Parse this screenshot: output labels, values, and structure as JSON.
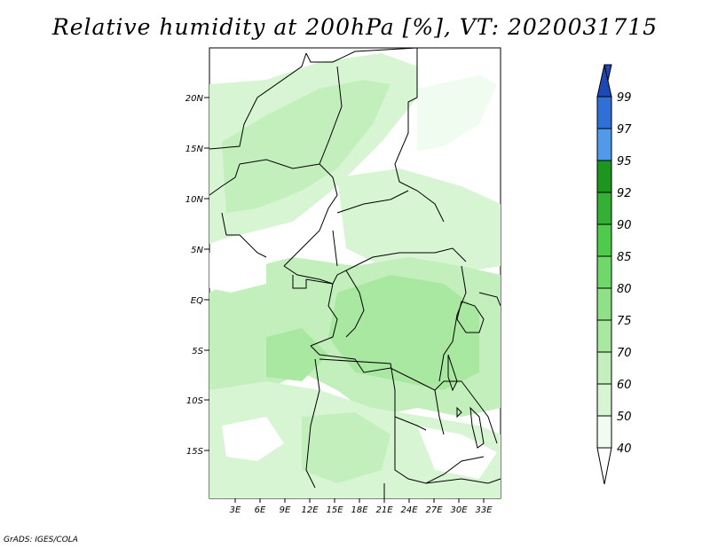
{
  "title": "Relative humidity at 200hPa [%], VT: 2020031715",
  "credit": "GrADS: IGES/COLA",
  "map": {
    "lat_labels": [
      "20N",
      "15N",
      "10N",
      "5N",
      "EQ",
      "5S",
      "10S",
      "15S"
    ],
    "lon_labels": [
      "3E",
      "6E",
      "9E",
      "12E",
      "15E",
      "18E",
      "21E",
      "24E",
      "27E",
      "30E",
      "33E"
    ]
  },
  "colorbar": {
    "levels": [
      "40",
      "50",
      "60",
      "70",
      "75",
      "80",
      "85",
      "90",
      "92",
      "95",
      "97",
      "99"
    ],
    "colors": {
      "40_50": "#f0fcf0",
      "50_60": "#d7f5d2",
      "60_70": "#c2efbc",
      "70_75": "#a9e8a0",
      "75_80": "#8ee285",
      "80_85": "#6fd86a",
      "85_90": "#4fcb4c",
      "90_92": "#34b134",
      "92_95": "#1e961e",
      "95_97": "#4f9bea",
      "97_99": "#2f6fd8",
      "99_up": "#1d48b6"
    }
  },
  "map_colors": {
    "fill_light": "#d7f5d2",
    "fill_mid": "#c2efbc",
    "fill_dark": "#a9e8a0",
    "border": "#000000"
  }
}
